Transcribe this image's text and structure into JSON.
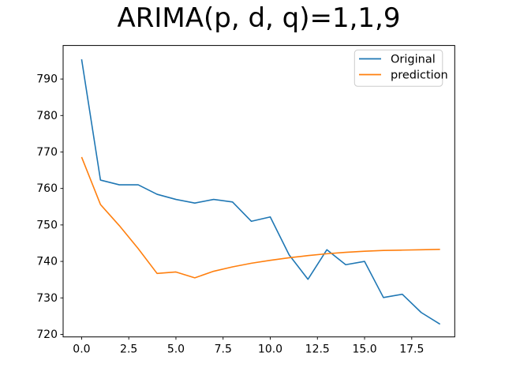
{
  "title": "ARIMA(p, d, q)=1,1,9",
  "colors": {
    "background": "#ffffff",
    "axis": "#000000",
    "original_line": "#1f77b4",
    "prediction_line": "#ff7f0e",
    "legend_border": "#cccccc",
    "legend_background": "#ffffff"
  },
  "legend": {
    "position": "upper right",
    "items": [
      "Original",
      "prediction"
    ]
  },
  "chart_data": {
    "type": "line",
    "title": "ARIMA(p, d, q)=1,1,9",
    "xlabel": "",
    "ylabel": "",
    "grid": false,
    "legend_position": "upper right",
    "x": [
      0,
      1,
      2,
      3,
      4,
      5,
      6,
      7,
      8,
      9,
      10,
      11,
      12,
      13,
      14,
      15,
      16,
      17,
      18,
      19
    ],
    "series": [
      {
        "name": "Original",
        "color": "#1f77b4",
        "values": [
          795.4,
          762.3,
          761,
          761,
          758.4,
          757,
          756,
          757,
          756.3,
          751,
          752.2,
          741.8,
          735.1,
          743.2,
          739.1,
          740,
          730.1,
          731,
          726,
          722.8
        ]
      },
      {
        "name": "prediction",
        "color": "#ff7f0e",
        "values": [
          768.6,
          755.6,
          749.8,
          743.5,
          736.7,
          737.1,
          735.5,
          737.3,
          738.5,
          739.5,
          740.3,
          741.0,
          741.6,
          742.1,
          742.5,
          742.8,
          743.0,
          743.1,
          743.2,
          743.3
        ]
      }
    ],
    "xticks": [
      0,
      2.5,
      5,
      7.5,
      10,
      12.5,
      15,
      17.5
    ],
    "xtick_labels": [
      "0.0",
      "2.5",
      "5.0",
      "7.5",
      "10.0",
      "12.5",
      "15.0",
      "17.5"
    ],
    "yticks": [
      720,
      730,
      740,
      750,
      760,
      770,
      780,
      790
    ],
    "ytick_labels": [
      "720",
      "730",
      "740",
      "750",
      "760",
      "770",
      "780",
      "790"
    ],
    "xlim": [
      -0.98,
      19.78
    ],
    "ylim": [
      719.3,
      799.2
    ]
  }
}
